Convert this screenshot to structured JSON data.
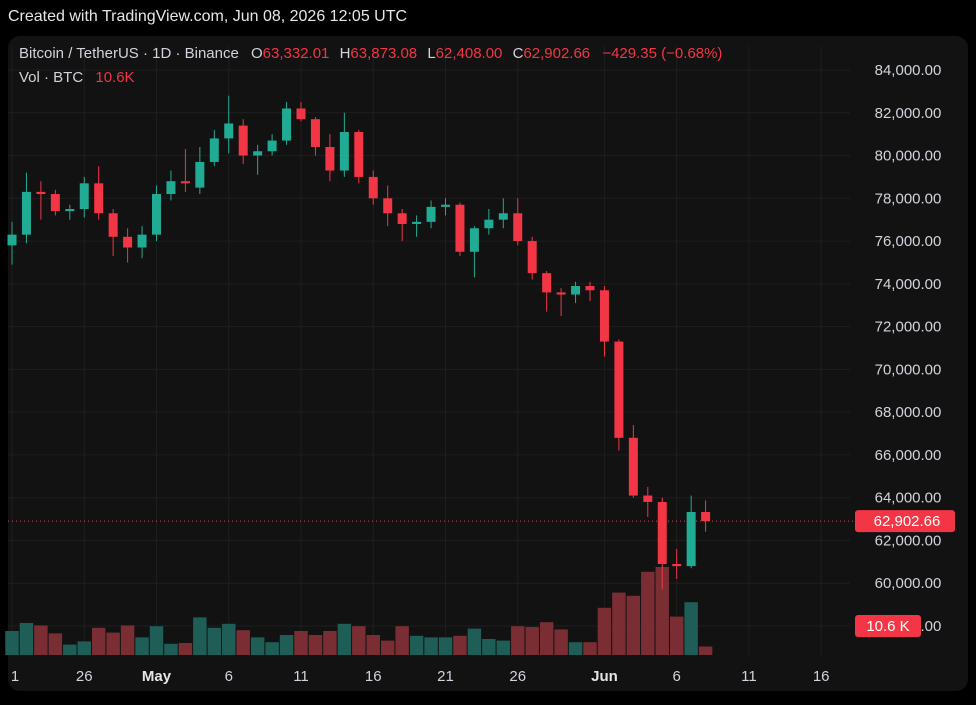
{
  "watermark": "Created with TradingView.com, Jun 08, 2026 12:05 UTC",
  "legend": {
    "symbol": "Bitcoin / TetherUS · 1D · Binance",
    "o_label": "O",
    "o_value": "63,332.01",
    "h_label": "H",
    "h_value": "63,873.08",
    "l_label": "L",
    "l_value": "62,408.00",
    "c_label": "C",
    "c_value": "62,902.66",
    "change": "−429.35 (−0.68%)",
    "vol_label": "Vol · BTC",
    "vol_value": "10.6K"
  },
  "colors": {
    "up": "#22ab94",
    "down": "#f23645",
    "volume_up": "#1f5e56",
    "volume_down": "#7a2e33",
    "background": "#121212",
    "grid": "#1e1e1e",
    "text": "#d1d4dc"
  },
  "chart_data": {
    "type": "candlestick",
    "symbol": "Bitcoin / TetherUS",
    "interval": "1D",
    "exchange": "Binance",
    "y_ticks": [
      "84,000.00",
      "82,000.00",
      "80,000.00",
      "78,000.00",
      "76,000.00",
      "74,000.00",
      "72,000.00",
      "70,000.00",
      "68,000.00",
      "66,000.00",
      "64,000.00",
      "62,000.00",
      "60,000.00",
      "58,000.00"
    ],
    "y_tick_values": [
      84000,
      82000,
      80000,
      78000,
      76000,
      74000,
      72000,
      70000,
      68000,
      66000,
      64000,
      62000,
      60000,
      58000
    ],
    "ylim": [
      56000,
      85300
    ],
    "x_ticks": [
      "1",
      "26",
      "May",
      "6",
      "11",
      "16",
      "21",
      "26",
      "Jun",
      "6",
      "11",
      "16"
    ],
    "x_tick_dates": [
      "2026-04-21",
      "2026-04-26",
      "2026-05-01",
      "2026-05-06",
      "2026-05-11",
      "2026-05-16",
      "2026-05-21",
      "2026-05-26",
      "2026-06-01",
      "2026-06-06",
      "2026-06-11",
      "2026-06-16"
    ],
    "last_price_label": "62,902.66",
    "last_price": 62902.66,
    "last_volume_label": "10.6 K",
    "grid": true,
    "candles": [
      {
        "date": "2026-04-21",
        "open": 75800,
        "high": 76900,
        "low": 74900,
        "close": 76300,
        "volume": 30
      },
      {
        "date": "2026-04-22",
        "open": 76300,
        "high": 79200,
        "low": 75900,
        "close": 78300,
        "volume": 40
      },
      {
        "date": "2026-04-23",
        "open": 78300,
        "high": 78800,
        "low": 77000,
        "close": 78200,
        "volume": 37
      },
      {
        "date": "2026-04-24",
        "open": 78200,
        "high": 78400,
        "low": 77200,
        "close": 77400,
        "volume": 27
      },
      {
        "date": "2026-04-25",
        "open": 77400,
        "high": 77700,
        "low": 77000,
        "close": 77500,
        "volume": 13
      },
      {
        "date": "2026-04-26",
        "open": 77500,
        "high": 79000,
        "low": 77100,
        "close": 78700,
        "volume": 17
      },
      {
        "date": "2026-04-27",
        "open": 78700,
        "high": 79500,
        "low": 77000,
        "close": 77300,
        "volume": 34
      },
      {
        "date": "2026-04-28",
        "open": 77300,
        "high": 77500,
        "low": 75300,
        "close": 76200,
        "volume": 28
      },
      {
        "date": "2026-04-29",
        "open": 76200,
        "high": 76600,
        "low": 75000,
        "close": 75700,
        "volume": 37
      },
      {
        "date": "2026-04-30",
        "open": 75700,
        "high": 76700,
        "low": 75200,
        "close": 76300,
        "volume": 22
      },
      {
        "date": "2026-05-01",
        "open": 76300,
        "high": 78600,
        "low": 76000,
        "close": 78200,
        "volume": 36
      },
      {
        "date": "2026-05-02",
        "open": 78200,
        "high": 79300,
        "low": 77900,
        "close": 78800,
        "volume": 14
      },
      {
        "date": "2026-05-03",
        "open": 78800,
        "high": 80300,
        "low": 78300,
        "close": 78700,
        "volume": 15
      },
      {
        "date": "2026-05-04",
        "open": 78500,
        "high": 80400,
        "low": 78200,
        "close": 79700,
        "volume": 47
      },
      {
        "date": "2026-05-05",
        "open": 79700,
        "high": 81200,
        "low": 79500,
        "close": 80800,
        "volume": 34
      },
      {
        "date": "2026-05-06",
        "open": 80800,
        "high": 82800,
        "low": 80100,
        "close": 81500,
        "volume": 39
      },
      {
        "date": "2026-05-07",
        "open": 81400,
        "high": 81700,
        "low": 79600,
        "close": 80000,
        "volume": 31
      },
      {
        "date": "2026-05-08",
        "open": 80000,
        "high": 80500,
        "low": 79100,
        "close": 80200,
        "volume": 22
      },
      {
        "date": "2026-05-09",
        "open": 80200,
        "high": 81000,
        "low": 80000,
        "close": 80700,
        "volume": 16
      },
      {
        "date": "2026-05-10",
        "open": 80700,
        "high": 82500,
        "low": 80500,
        "close": 82200,
        "volume": 25
      },
      {
        "date": "2026-05-11",
        "open": 82200,
        "high": 82500,
        "low": 81600,
        "close": 81700,
        "volume": 30
      },
      {
        "date": "2026-05-12",
        "open": 81700,
        "high": 81800,
        "low": 80000,
        "close": 80400,
        "volume": 25
      },
      {
        "date": "2026-05-13",
        "open": 80400,
        "high": 81000,
        "low": 78800,
        "close": 79300,
        "volume": 30
      },
      {
        "date": "2026-05-14",
        "open": 79300,
        "high": 82000,
        "low": 79000,
        "close": 81100,
        "volume": 39
      },
      {
        "date": "2026-05-15",
        "open": 81100,
        "high": 81200,
        "low": 78700,
        "close": 79000,
        "volume": 36
      },
      {
        "date": "2026-05-16",
        "open": 79000,
        "high": 79300,
        "low": 77700,
        "close": 78000,
        "volume": 25
      },
      {
        "date": "2026-05-17",
        "open": 78000,
        "high": 78600,
        "low": 76700,
        "close": 77300,
        "volume": 18
      },
      {
        "date": "2026-05-18",
        "open": 77300,
        "high": 77500,
        "low": 76000,
        "close": 76800,
        "volume": 36
      },
      {
        "date": "2026-05-19",
        "open": 76800,
        "high": 77200,
        "low": 76200,
        "close": 76900,
        "volume": 24
      },
      {
        "date": "2026-05-20",
        "open": 76900,
        "high": 77900,
        "low": 76600,
        "close": 77600,
        "volume": 22
      },
      {
        "date": "2026-05-21",
        "open": 77600,
        "high": 78000,
        "low": 77200,
        "close": 77700,
        "volume": 22
      },
      {
        "date": "2026-05-22",
        "open": 77700,
        "high": 77800,
        "low": 75300,
        "close": 75500,
        "volume": 24
      },
      {
        "date": "2026-05-23",
        "open": 75500,
        "high": 76700,
        "low": 74300,
        "close": 76600,
        "volume": 33
      },
      {
        "date": "2026-05-24",
        "open": 76600,
        "high": 77500,
        "low": 76300,
        "close": 77000,
        "volume": 20
      },
      {
        "date": "2026-05-25",
        "open": 77000,
        "high": 78000,
        "low": 76600,
        "close": 77300,
        "volume": 18
      },
      {
        "date": "2026-05-26",
        "open": 77300,
        "high": 78000,
        "low": 75800,
        "close": 76000,
        "volume": 36
      },
      {
        "date": "2026-05-27",
        "open": 76000,
        "high": 76200,
        "low": 74200,
        "close": 74500,
        "volume": 35
      },
      {
        "date": "2026-05-28",
        "open": 74500,
        "high": 74600,
        "low": 72700,
        "close": 73600,
        "volume": 41
      },
      {
        "date": "2026-05-29",
        "open": 73600,
        "high": 73800,
        "low": 72500,
        "close": 73500,
        "volume": 32
      },
      {
        "date": "2026-05-30",
        "open": 73500,
        "high": 74100,
        "low": 73100,
        "close": 73900,
        "volume": 16
      },
      {
        "date": "2026-05-31",
        "open": 73900,
        "high": 74100,
        "low": 73200,
        "close": 73700,
        "volume": 16
      },
      {
        "date": "2026-06-01",
        "open": 73700,
        "high": 73900,
        "low": 70600,
        "close": 71300,
        "volume": 59
      },
      {
        "date": "2026-06-02",
        "open": 71300,
        "high": 71400,
        "low": 66200,
        "close": 66800,
        "volume": 78
      },
      {
        "date": "2026-06-03",
        "open": 66800,
        "high": 67400,
        "low": 64000,
        "close": 64100,
        "volume": 74
      },
      {
        "date": "2026-06-04",
        "open": 64100,
        "high": 64500,
        "low": 63100,
        "close": 63800,
        "volume": 104
      },
      {
        "date": "2026-06-05",
        "open": 63800,
        "high": 64000,
        "low": 59700,
        "close": 60900,
        "volume": 110
      },
      {
        "date": "2026-06-06",
        "open": 60900,
        "high": 61600,
        "low": 60200,
        "close": 60800,
        "volume": 48
      },
      {
        "date": "2026-06-07",
        "open": 60800,
        "high": 64100,
        "low": 60700,
        "close": 63332.01,
        "volume": 66
      },
      {
        "date": "2026-06-08",
        "open": 63332.01,
        "high": 63873.08,
        "low": 62408.0,
        "close": 62902.66,
        "volume": 10.6
      }
    ]
  }
}
